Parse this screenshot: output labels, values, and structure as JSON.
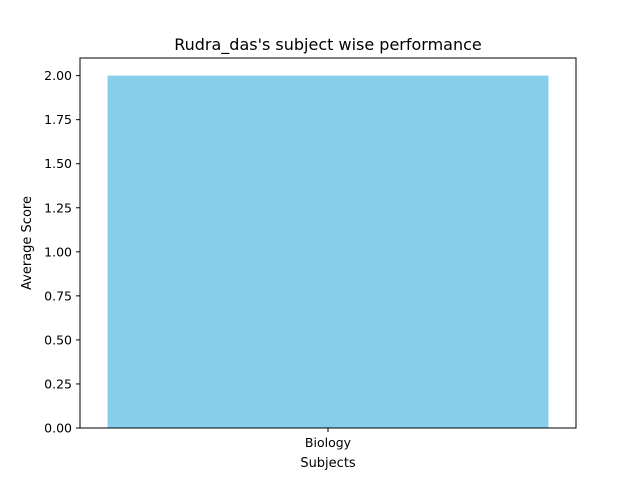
{
  "chart_data": {
    "type": "bar",
    "title": "Rudra_das's subject wise performance",
    "xlabel": "Subjects",
    "ylabel": "Average Score",
    "categories": [
      "Biology"
    ],
    "values": [
      2.0
    ],
    "ylim": [
      0,
      2.1
    ],
    "yticks": [
      "0.00",
      "0.25",
      "0.50",
      "0.75",
      "1.00",
      "1.25",
      "1.50",
      "1.75",
      "2.00"
    ],
    "grid": false,
    "bar_color": "#87CEEB"
  }
}
